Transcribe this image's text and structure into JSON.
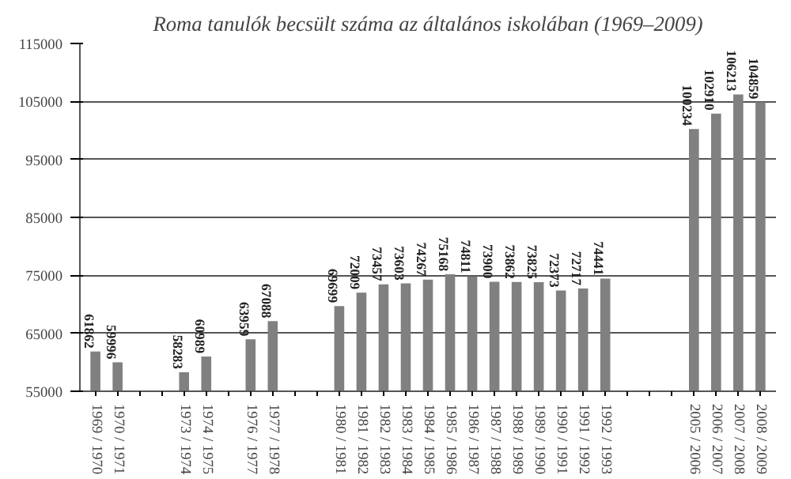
{
  "chart_data": {
    "type": "bar",
    "title": "Roma tanulók becsült száma az általános iskolában (1969–2009)",
    "categories": [
      "1969 / 1970",
      "1970 / 1971",
      null,
      null,
      "1973 / 1974",
      "1974 / 1975",
      null,
      "1976 / 1977",
      "1977 / 1978",
      null,
      null,
      "1980 / 1981",
      "1981 / 1982",
      "1982 / 1983",
      "1983 / 1984",
      "1984 / 1985",
      "1985 / 1986",
      "1986 / 1987",
      "1987 / 1988",
      "1988 / 1989",
      "1989 / 1990",
      "1990 / 1991",
      "1991 / 1992",
      "1992 / 1993",
      null,
      null,
      null,
      "2005 / 2006",
      "2006 / 2007",
      "2007 / 2008",
      "2008 / 2009"
    ],
    "values": [
      61862,
      59996,
      null,
      null,
      58283,
      60989,
      null,
      63959,
      67088,
      null,
      null,
      69699,
      72009,
      73457,
      73603,
      74267,
      75168,
      74811,
      73900,
      73862,
      73825,
      72373,
      72717,
      74441,
      null,
      null,
      null,
      100234,
      102910,
      106213,
      104859
    ],
    "color": "#808080",
    "ylim": [
      55000,
      115000
    ],
    "yticks": [
      55000,
      65000,
      75000,
      85000,
      95000,
      105000,
      115000
    ],
    "grid": "y",
    "data_labels": true
  }
}
